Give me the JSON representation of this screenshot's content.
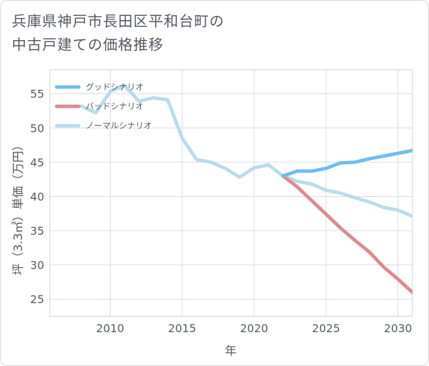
{
  "title_line1": "兵庫県神戸市長田区平和台町の",
  "title_line2": "中古戸建ての価格推移",
  "chart_data": {
    "type": "line",
    "xlabel": "年",
    "ylabel": "坪（3.3㎡）単価（万円）",
    "xlim": [
      2005.8,
      2031
    ],
    "ylim": [
      22.5,
      58.5
    ],
    "xticks": [
      2010,
      2015,
      2020,
      2025,
      2030
    ],
    "yticks": [
      25,
      30,
      35,
      40,
      45,
      50,
      55
    ],
    "grid": true,
    "legend_position": "top-left",
    "series": [
      {
        "name": "グッドシナリオ",
        "color": "#6ebdf0",
        "x": [
          2022,
          2023,
          2024,
          2025,
          2026,
          2027,
          2028,
          2029,
          2030,
          2031
        ],
        "y": [
          43.0,
          43.7,
          43.7,
          44.1,
          44.9,
          45.0,
          45.5,
          45.9,
          46.3,
          46.7
        ]
      },
      {
        "name": "バッドシナリオ",
        "color": "#dd8a91",
        "x": [
          2022,
          2023,
          2024,
          2025,
          2026,
          2027,
          2028,
          2029,
          2030,
          2031
        ],
        "y": [
          43.0,
          41.4,
          39.4,
          37.4,
          35.4,
          33.6,
          31.9,
          29.7,
          27.9,
          26.0
        ]
      },
      {
        "name": "ノーマルシナリオ",
        "color": "#b9dcea",
        "x": [
          2008,
          2009,
          2010,
          2011,
          2012,
          2013,
          2014,
          2015,
          2016,
          2017,
          2018,
          2019,
          2020,
          2021,
          2022,
          2023,
          2024,
          2025,
          2026,
          2027,
          2028,
          2029,
          2030,
          2031
        ],
        "y": [
          53.2,
          52.2,
          55.3,
          56.2,
          53.9,
          54.4,
          54.1,
          48.5,
          45.4,
          45.0,
          44.1,
          42.8,
          44.2,
          44.6,
          43.0,
          42.2,
          41.8,
          40.9,
          40.5,
          39.8,
          39.2,
          38.4,
          38.0,
          37.1
        ]
      }
    ]
  }
}
